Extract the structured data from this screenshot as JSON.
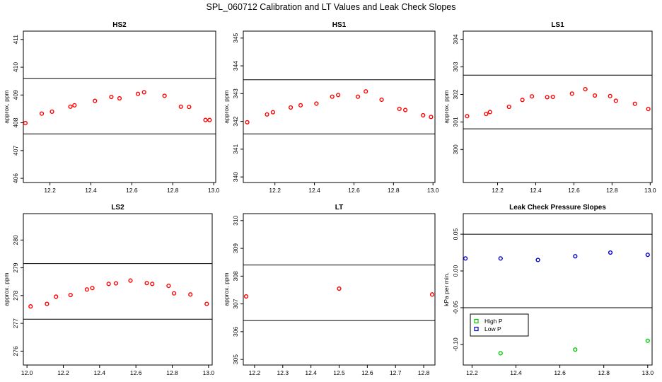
{
  "figure": {
    "title": "SPL_060712  Calibration and LT Values and Leak Check Slopes"
  },
  "chart_data": [
    {
      "type": "scatter",
      "title": "HS2",
      "xlabel": "",
      "ylabel": "approx. ppm",
      "xlim": [
        12.07,
        13.01
      ],
      "ylim": [
        405.85,
        411.3
      ],
      "xticks": [
        12.2,
        12.4,
        12.6,
        12.8,
        13.0
      ],
      "xtick_labels": [
        "12.2",
        "12.4",
        "12.6",
        "12.8",
        "13.0"
      ],
      "yticks": [
        406,
        407,
        408,
        409,
        410,
        411
      ],
      "ytick_labels": [
        "406",
        "407",
        "408",
        "409",
        "410",
        "411"
      ],
      "hlines": [
        409.6,
        407.6
      ],
      "series": [
        {
          "color": "#ff0000",
          "marker": "circle",
          "x": [
            12.08,
            12.16,
            12.21,
            12.3,
            12.32,
            12.42,
            12.5,
            12.54,
            12.63,
            12.66,
            12.76,
            12.84,
            12.88,
            12.96,
            12.98
          ],
          "y": [
            407.99,
            408.33,
            408.4,
            408.58,
            408.63,
            408.79,
            408.93,
            408.88,
            409.04,
            409.1,
            408.97,
            408.58,
            408.57,
            408.1,
            408.1
          ]
        }
      ]
    },
    {
      "type": "scatter",
      "title": "HS1",
      "xlabel": "",
      "ylabel": "approx. ppm",
      "xlim": [
        12.04,
        13.01
      ],
      "ylim": [
        339.8,
        345.25
      ],
      "xticks": [
        12.2,
        12.4,
        12.6,
        12.8,
        13.0
      ],
      "xtick_labels": [
        "12.2",
        "12.4",
        "12.6",
        "12.8",
        "13.0"
      ],
      "yticks": [
        340,
        341,
        342,
        343,
        344,
        345
      ],
      "ytick_labels": [
        "340",
        "341",
        "342",
        "343",
        "344",
        "345"
      ],
      "hlines": [
        343.5,
        341.55
      ],
      "series": [
        {
          "color": "#ff0000",
          "marker": "circle",
          "x": [
            12.06,
            12.16,
            12.19,
            12.28,
            12.33,
            12.41,
            12.49,
            12.52,
            12.62,
            12.66,
            12.74,
            12.83,
            12.86,
            12.95,
            12.99
          ],
          "y": [
            341.97,
            342.25,
            342.33,
            342.5,
            342.58,
            342.64,
            342.89,
            342.95,
            342.89,
            343.08,
            342.78,
            342.45,
            342.41,
            342.22,
            342.16
          ]
        }
      ]
    },
    {
      "type": "scatter",
      "title": "LS1",
      "xlabel": "",
      "ylabel": "approx. ppm",
      "xlim": [
        12.02,
        13.01
      ],
      "ylim": [
        298.8,
        304.3
      ],
      "xticks": [
        12.2,
        12.4,
        12.6,
        12.8,
        13.0
      ],
      "xtick_labels": [
        "12.2",
        "12.4",
        "12.6",
        "12.8",
        "13.0"
      ],
      "yticks": [
        300,
        301,
        302,
        303,
        304
      ],
      "ytick_labels": [
        "300",
        "301",
        "302",
        "303",
        "304"
      ],
      "hlines": [
        302.7,
        300.75
      ],
      "series": [
        {
          "color": "#ff0000",
          "marker": "circle",
          "x": [
            12.04,
            12.14,
            12.16,
            12.26,
            12.33,
            12.38,
            12.46,
            12.49,
            12.59,
            12.66,
            12.71,
            12.79,
            12.82,
            12.92,
            12.99
          ],
          "y": [
            301.21,
            301.29,
            301.36,
            301.55,
            301.8,
            301.93,
            301.9,
            301.91,
            302.03,
            302.19,
            301.96,
            301.94,
            301.77,
            301.66,
            301.47
          ]
        }
      ]
    },
    {
      "type": "scatter",
      "title": "LS2",
      "xlabel": "",
      "ylabel": "approx. ppm",
      "xlim": [
        11.98,
        13.02
      ],
      "ylim": [
        275.5,
        280.95
      ],
      "xticks": [
        12.0,
        12.2,
        12.4,
        12.6,
        12.8,
        13.0
      ],
      "xtick_labels": [
        "12.0",
        "12.2",
        "12.4",
        "12.6",
        "12.8",
        "13.0"
      ],
      "yticks": [
        276,
        277,
        278,
        279,
        280
      ],
      "ytick_labels": [
        "276",
        "277",
        "278",
        "279",
        "280"
      ],
      "hlines": [
        279.15,
        277.15
      ],
      "series": [
        {
          "color": "#ff0000",
          "marker": "circle",
          "x": [
            12.02,
            12.11,
            12.16,
            12.24,
            12.33,
            12.36,
            12.45,
            12.49,
            12.57,
            12.66,
            12.69,
            12.78,
            12.81,
            12.9,
            12.99
          ],
          "y": [
            277.61,
            277.7,
            277.96,
            278.02,
            278.22,
            278.27,
            278.42,
            278.44,
            278.54,
            278.45,
            278.42,
            278.35,
            278.08,
            278.04,
            277.7
          ]
        }
      ]
    },
    {
      "type": "scatter",
      "title": "LT",
      "xlabel": "",
      "ylabel": "approx. ppm",
      "xlim": [
        12.16,
        12.84
      ],
      "ylim": [
        304.8,
        310.25
      ],
      "xticks": [
        12.2,
        12.3,
        12.4,
        12.5,
        12.6,
        12.7,
        12.8
      ],
      "xtick_labels": [
        "12.2",
        "12.3",
        "12.4",
        "12.5",
        "12.6",
        "12.7",
        "12.8"
      ],
      "yticks": [
        305,
        306,
        307,
        308,
        309,
        310
      ],
      "ytick_labels": [
        "305",
        "306",
        "307",
        "308",
        "309",
        "310"
      ],
      "hlines": [
        308.4,
        306.4
      ],
      "series": [
        {
          "color": "#ff0000",
          "marker": "circle",
          "x": [
            12.17,
            12.5,
            12.83
          ],
          "y": [
            307.27,
            307.55,
            307.34
          ]
        }
      ]
    },
    {
      "type": "scatter",
      "title": "Leak Check Pressure Slopes",
      "xlabel": "",
      "ylabel": "kPa per min.",
      "xlim": [
        12.16,
        13.02
      ],
      "ylim": [
        -0.128,
        0.078
      ],
      "xticks": [
        12.2,
        12.4,
        12.6,
        12.8,
        13.0
      ],
      "xtick_labels": [
        "12.2",
        "12.4",
        "12.6",
        "12.8",
        "13.0"
      ],
      "yticks": [
        -0.1,
        -0.05,
        0.0,
        0.05
      ],
      "ytick_labels": [
        "-0.10",
        "-0.05",
        "0.00",
        "0.05"
      ],
      "hlines": [
        0.05,
        -0.05
      ],
      "legend": {
        "position": "bottom-left",
        "entries": [
          {
            "label": "High P",
            "color": "#00cc00"
          },
          {
            "label": "Low P",
            "color": "#0000cc"
          }
        ]
      },
      "series": [
        {
          "name": "High P",
          "color": "#00cc00",
          "marker": "circle",
          "x": [
            12.33,
            12.67,
            13.0
          ],
          "y": [
            -0.112,
            -0.107,
            -0.095
          ]
        },
        {
          "name": "Low P",
          "color": "#0000cc",
          "marker": "circle",
          "x": [
            12.17,
            12.33,
            12.5,
            12.67,
            12.83,
            13.0
          ],
          "y": [
            0.017,
            0.017,
            0.015,
            0.02,
            0.025,
            0.022
          ]
        }
      ]
    }
  ]
}
